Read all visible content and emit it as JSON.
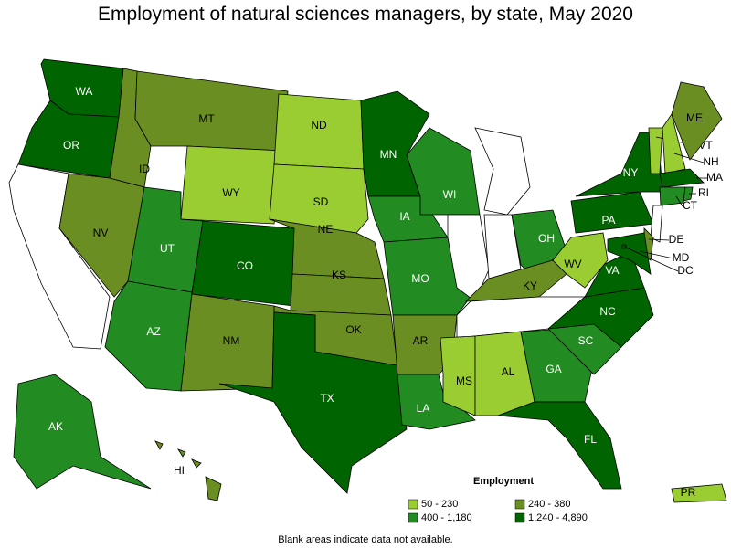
{
  "title": "Employment of natural sciences managers, by state, May 2020",
  "legend": {
    "title": "Employment",
    "entries": [
      {
        "label": "50 - 230",
        "color": "#9acd32"
      },
      {
        "label": "240 - 380",
        "color": "#6b8e23"
      },
      {
        "label": "400 - 1,180",
        "color": "#228b22"
      },
      {
        "label": "1,240 - 4,890",
        "color": "#006400"
      }
    ]
  },
  "note": "Blank areas indicate data not available.",
  "states": [
    {
      "label": "WA",
      "level": 3
    },
    {
      "label": "OR",
      "level": 3
    },
    {
      "label": null,
      "level": null
    },
    {
      "label": "NV",
      "level": 1
    },
    {
      "label": "ID",
      "level": 1
    },
    {
      "label": "MT",
      "level": 1
    },
    {
      "label": "WY",
      "level": 0
    },
    {
      "label": "UT",
      "level": 2
    },
    {
      "label": "AZ",
      "level": 2
    },
    {
      "label": "CO",
      "level": 3
    },
    {
      "label": "NM",
      "level": 1
    },
    {
      "label": "ND",
      "level": 0
    },
    {
      "label": "SD",
      "level": 0
    },
    {
      "label": "NE",
      "level": 1
    },
    {
      "label": "KS",
      "level": 1
    },
    {
      "label": "OK",
      "level": 1
    },
    {
      "label": "TX",
      "level": 3
    },
    {
      "label": "MN",
      "level": 3
    },
    {
      "label": "IA",
      "level": 2
    },
    {
      "label": "MO",
      "level": 2
    },
    {
      "label": "AR",
      "level": 1
    },
    {
      "label": "LA",
      "level": 2
    },
    {
      "label": "WI",
      "level": 2
    },
    {
      "label": null,
      "level": null
    },
    {
      "label": null,
      "level": null
    },
    {
      "label": null,
      "level": null
    },
    {
      "label": "OH",
      "level": 2
    },
    {
      "label": "KY",
      "level": 1
    },
    {
      "label": null,
      "level": null
    },
    {
      "label": "MS",
      "level": 0
    },
    {
      "label": "AL",
      "level": 0
    },
    {
      "label": "GA",
      "level": 2
    },
    {
      "label": "FL",
      "level": 3
    },
    {
      "label": "SC",
      "level": 2
    },
    {
      "label": "NC",
      "level": 3
    },
    {
      "label": "VA",
      "level": 3
    },
    {
      "label": "WV",
      "level": 0
    },
    {
      "label": "PA",
      "level": 3
    },
    {
      "label": "NY",
      "level": 3
    },
    {
      "label": "VT",
      "level": 0
    },
    {
      "label": "NH",
      "level": 0
    },
    {
      "label": "ME",
      "level": 1
    },
    {
      "label": "MA",
      "level": 3
    },
    {
      "label": "CT",
      "level": 2
    },
    {
      "label": "RI",
      "level": 2
    },
    {
      "label": null,
      "level": null
    },
    {
      "label": "DE",
      "level": 1
    },
    {
      "label": "MD",
      "level": 3
    },
    {
      "label": "DC",
      "level": 3
    },
    {
      "label": "AK",
      "level": 2
    },
    {
      "label": "HI",
      "level": 1
    },
    {
      "label": "PR",
      "level": 0
    }
  ]
}
